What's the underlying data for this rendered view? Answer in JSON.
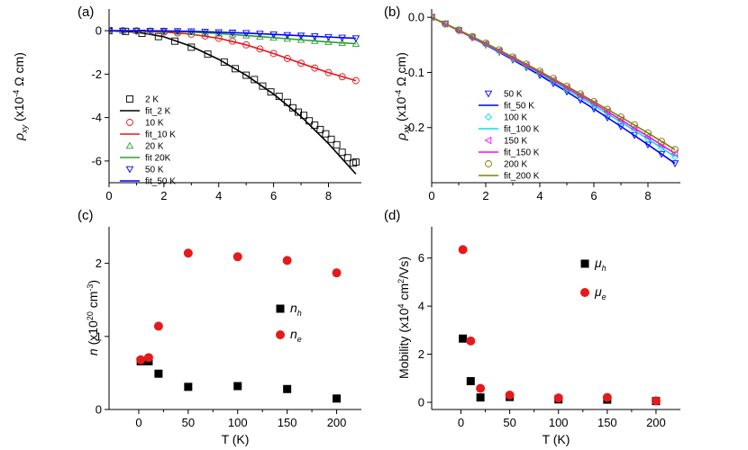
{
  "chart_data": [
    {
      "panel": "(a)",
      "type": "scatter",
      "xlabel": "",
      "ylabel_parts": [
        "ρ",
        "xy",
        " (x10",
        "-4",
        " Ω cm)"
      ],
      "xlim": [
        0,
        9.2
      ],
      "ylim": [
        -7,
        1
      ],
      "xticks": [
        0,
        2,
        4,
        6,
        8
      ],
      "yticks": [
        0,
        -2,
        -4,
        -6
      ],
      "legend_position": "bottom-left",
      "series": [
        {
          "name": "2 K",
          "kind": "markers",
          "marker": "square-open",
          "color": "#000000",
          "x": [
            0.0,
            0.6,
            1.2,
            1.8,
            2.4,
            3.0,
            3.6,
            4.2,
            4.6,
            5.0,
            5.3,
            5.6,
            5.9,
            6.2,
            6.5,
            6.7,
            6.9,
            7.1,
            7.3,
            7.5,
            7.7,
            7.9,
            8.1,
            8.3,
            8.5,
            8.7,
            8.9,
            9.0
          ],
          "y": [
            0.0,
            -0.03,
            -0.12,
            -0.27,
            -0.48,
            -0.76,
            -1.08,
            -1.44,
            -1.75,
            -2.05,
            -2.25,
            -2.55,
            -2.82,
            -3.02,
            -3.3,
            -3.55,
            -3.75,
            -3.9,
            -4.15,
            -4.35,
            -4.55,
            -4.75,
            -5.0,
            -5.25,
            -5.6,
            -5.85,
            -6.1,
            -6.05
          ]
        },
        {
          "name": "fit_2 K",
          "kind": "line",
          "color": "#000000",
          "x": [
            0,
            1,
            2,
            3,
            4,
            5,
            6,
            7,
            8,
            9
          ],
          "y": [
            0.0,
            -0.06,
            -0.28,
            -0.72,
            -1.32,
            -2.05,
            -2.92,
            -3.95,
            -5.2,
            -6.6
          ]
        },
        {
          "name": "10 K",
          "kind": "markers",
          "marker": "circle-open",
          "color": "#e41a1c",
          "x": [
            0.0,
            0.5,
            1.0,
            1.5,
            2.0,
            2.5,
            3.0,
            3.5,
            4.0,
            4.5,
            5.0,
            5.5,
            6.0,
            6.5,
            7.0,
            7.5,
            8.0,
            8.5,
            9.0
          ],
          "y": [
            0.0,
            0.0,
            -0.01,
            -0.03,
            -0.06,
            -0.1,
            -0.16,
            -0.24,
            -0.35,
            -0.48,
            -0.65,
            -0.84,
            -1.05,
            -1.28,
            -1.5,
            -1.72,
            -1.93,
            -2.12,
            -2.3
          ]
        },
        {
          "name": "fit_10 K",
          "kind": "line",
          "color": "#e41a1c",
          "x": [
            0,
            1,
            2,
            3,
            4,
            5,
            6,
            7,
            8,
            9
          ],
          "y": [
            0.0,
            -0.01,
            -0.06,
            -0.16,
            -0.35,
            -0.65,
            -1.05,
            -1.5,
            -1.93,
            -2.3
          ]
        },
        {
          "name": "20 K",
          "kind": "markers",
          "marker": "triangle-up-open",
          "color": "#2ca02c",
          "x": [
            0.0,
            0.5,
            1.0,
            1.5,
            2.0,
            2.5,
            3.0,
            3.5,
            4.0,
            4.5,
            5.0,
            5.5,
            6.0,
            6.5,
            7.0,
            7.5,
            8.0,
            8.5,
            9.0
          ],
          "y": [
            0.0,
            0.0,
            0.0,
            -0.01,
            -0.02,
            -0.04,
            -0.06,
            -0.09,
            -0.13,
            -0.17,
            -0.22,
            -0.27,
            -0.32,
            -0.37,
            -0.42,
            -0.47,
            -0.52,
            -0.56,
            -0.6
          ]
        },
        {
          "name": "fit 20K",
          "kind": "line",
          "color": "#2ca02c",
          "x": [
            0,
            1,
            2,
            3,
            4,
            5,
            6,
            7,
            8,
            9
          ],
          "y": [
            0.0,
            0.0,
            -0.02,
            -0.06,
            -0.13,
            -0.22,
            -0.32,
            -0.42,
            -0.52,
            -0.6
          ]
        },
        {
          "name": "50 K",
          "kind": "markers",
          "marker": "triangle-down-open",
          "color": "#0000ff",
          "x": [
            0.0,
            0.5,
            1.0,
            1.5,
            2.0,
            2.5,
            3.0,
            3.5,
            4.0,
            4.5,
            5.0,
            5.5,
            6.0,
            6.5,
            7.0,
            7.5,
            8.0,
            8.5,
            9.0
          ],
          "y": [
            0.0,
            0.0,
            0.0,
            -0.01,
            -0.01,
            -0.02,
            -0.03,
            -0.05,
            -0.07,
            -0.09,
            -0.11,
            -0.14,
            -0.17,
            -0.2,
            -0.23,
            -0.26,
            -0.29,
            -0.32,
            -0.35
          ]
        },
        {
          "name": "fit_50 K",
          "kind": "line",
          "color": "#0000ff",
          "x": [
            0,
            1,
            2,
            3,
            4,
            5,
            6,
            7,
            8,
            9
          ],
          "y": [
            0.0,
            0.0,
            -0.01,
            -0.03,
            -0.07,
            -0.11,
            -0.17,
            -0.23,
            -0.29,
            -0.35
          ]
        }
      ]
    },
    {
      "panel": "(b)",
      "type": "scatter",
      "xlabel": "",
      "ylabel_parts": [
        "ρ",
        "xy",
        " (x10",
        "-4",
        " Ω cm)"
      ],
      "xlim": [
        0,
        9.2
      ],
      "ylim": [
        -0.3,
        0.015
      ],
      "xticks": [
        0,
        2,
        4,
        6,
        8
      ],
      "yticks": [
        0.0,
        -0.1,
        -0.2
      ],
      "ytick_labels": [
        "0.0",
        "-0.1",
        "-0.2"
      ],
      "legend_position": "bottom-left",
      "series": [
        {
          "name": "50 K",
          "kind": "markers",
          "marker": "triangle-down-open",
          "color": "#0000ff",
          "x": [
            0.0,
            0.5,
            1.0,
            1.5,
            2.0,
            2.5,
            3.0,
            3.5,
            4.0,
            4.5,
            5.0,
            5.5,
            6.0,
            6.5,
            7.0,
            7.5,
            8.0,
            8.5,
            9.0
          ],
          "y": [
            0.0,
            -0.012,
            -0.024,
            -0.037,
            -0.05,
            -0.063,
            -0.077,
            -0.091,
            -0.105,
            -0.12,
            -0.135,
            -0.15,
            -0.166,
            -0.182,
            -0.198,
            -0.214,
            -0.231,
            -0.248,
            -0.265
          ]
        },
        {
          "name": "fit_50 K",
          "kind": "line",
          "color": "#0000ff",
          "x": [
            0,
            1,
            2,
            3,
            4,
            5,
            6,
            7,
            8,
            9
          ],
          "y": [
            0.0,
            -0.024,
            -0.05,
            -0.077,
            -0.105,
            -0.135,
            -0.166,
            -0.198,
            -0.231,
            -0.265
          ]
        },
        {
          "name": "100 K",
          "kind": "markers",
          "marker": "diamond-open",
          "color": "#00e5e5",
          "x": [
            0.0,
            0.5,
            1.0,
            1.5,
            2.0,
            2.5,
            3.0,
            3.5,
            4.0,
            4.5,
            5.0,
            5.5,
            6.0,
            6.5,
            7.0,
            7.5,
            8.0,
            8.5,
            9.0
          ],
          "y": [
            0.0,
            -0.012,
            -0.024,
            -0.036,
            -0.049,
            -0.062,
            -0.075,
            -0.089,
            -0.102,
            -0.116,
            -0.131,
            -0.145,
            -0.16,
            -0.175,
            -0.19,
            -0.205,
            -0.221,
            -0.237,
            -0.253
          ]
        },
        {
          "name": "fit_100 K",
          "kind": "line",
          "color": "#00e5e5",
          "x": [
            0,
            1,
            2,
            3,
            4,
            5,
            6,
            7,
            8,
            9
          ],
          "y": [
            0.0,
            -0.024,
            -0.049,
            -0.075,
            -0.102,
            -0.131,
            -0.16,
            -0.19,
            -0.221,
            -0.253
          ]
        },
        {
          "name": "150 K",
          "kind": "markers",
          "marker": "triangle-left-open",
          "color": "#ff00ff",
          "x": [
            0.0,
            0.5,
            1.0,
            1.5,
            2.0,
            2.5,
            3.0,
            3.5,
            4.0,
            4.5,
            5.0,
            5.5,
            6.0,
            6.5,
            7.0,
            7.5,
            8.0,
            8.5,
            9.0
          ],
          "y": [
            0.0,
            -0.012,
            -0.024,
            -0.036,
            -0.048,
            -0.061,
            -0.074,
            -0.087,
            -0.1,
            -0.114,
            -0.128,
            -0.142,
            -0.156,
            -0.171,
            -0.186,
            -0.201,
            -0.216,
            -0.231,
            -0.247
          ]
        },
        {
          "name": "fit_150 K",
          "kind": "line",
          "color": "#ff00ff",
          "x": [
            0,
            1,
            2,
            3,
            4,
            5,
            6,
            7,
            8,
            9
          ],
          "y": [
            0.0,
            -0.024,
            -0.048,
            -0.074,
            -0.1,
            -0.128,
            -0.156,
            -0.186,
            -0.216,
            -0.247
          ]
        },
        {
          "name": "200 K",
          "kind": "markers",
          "marker": "circle-open",
          "color": "#808000",
          "x": [
            0.0,
            0.5,
            1.0,
            1.5,
            2.0,
            2.5,
            3.0,
            3.5,
            4.0,
            4.5,
            5.0,
            5.5,
            6.0,
            6.5,
            7.0,
            7.5,
            8.0,
            8.5,
            9.0
          ],
          "y": [
            0.0,
            -0.012,
            -0.023,
            -0.035,
            -0.047,
            -0.059,
            -0.072,
            -0.085,
            -0.098,
            -0.111,
            -0.125,
            -0.139,
            -0.153,
            -0.167,
            -0.181,
            -0.195,
            -0.21,
            -0.225,
            -0.24
          ]
        },
        {
          "name": "fit_200 K",
          "kind": "line",
          "color": "#808000",
          "x": [
            0,
            1,
            2,
            3,
            4,
            5,
            6,
            7,
            8,
            9
          ],
          "y": [
            0.0,
            -0.023,
            -0.047,
            -0.072,
            -0.098,
            -0.125,
            -0.153,
            -0.181,
            -0.21,
            -0.24
          ]
        }
      ]
    },
    {
      "panel": "(c)",
      "type": "scatter",
      "xlabel": "T (K)",
      "ylabel_parts": [
        "n",
        " (x10",
        "20",
        " cm",
        "-3",
        ")"
      ],
      "xlim": [
        -30,
        225
      ],
      "ylim": [
        0,
        2.5
      ],
      "xticks": [
        0,
        50,
        100,
        150,
        200
      ],
      "yticks": [
        0,
        1,
        2
      ],
      "legend_position": "middle-right",
      "series": [
        {
          "name": "n",
          "subscript": "h",
          "kind": "markers",
          "marker": "square-filled",
          "color": "#000000",
          "x": [
            2,
            10,
            20,
            50,
            100,
            150,
            200
          ],
          "y": [
            0.66,
            0.66,
            0.49,
            0.31,
            0.32,
            0.28,
            0.15
          ]
        },
        {
          "name": "n",
          "subscript": "e",
          "kind": "markers",
          "marker": "circle-filled",
          "color": "#e41a1c",
          "x": [
            2,
            10,
            20,
            50,
            100,
            150,
            200
          ],
          "y": [
            0.68,
            0.71,
            1.14,
            2.14,
            2.09,
            2.04,
            1.87
          ]
        }
      ]
    },
    {
      "panel": "(d)",
      "type": "scatter",
      "xlabel": "T (K)",
      "ylabel_parts": [
        "Mobility (x10",
        "4",
        " cm",
        "2",
        "/Vs)"
      ],
      "xlim": [
        -30,
        225
      ],
      "ylim": [
        -0.3,
        7.3
      ],
      "xticks": [
        0,
        50,
        100,
        150,
        200
      ],
      "yticks": [
        0,
        2,
        4,
        6
      ],
      "legend_position": "top-right",
      "series": [
        {
          "name": "μ",
          "subscript": "h",
          "kind": "markers",
          "marker": "square-filled",
          "color": "#000000",
          "x": [
            2,
            10,
            20,
            50,
            100,
            150,
            200
          ],
          "y": [
            2.65,
            0.88,
            0.2,
            0.22,
            0.12,
            0.11,
            0.05
          ]
        },
        {
          "name": "μ",
          "subscript": "e",
          "kind": "markers",
          "marker": "circle-filled",
          "color": "#e41a1c",
          "x": [
            2,
            10,
            20,
            50,
            100,
            150,
            200
          ],
          "y": [
            6.35,
            2.55,
            0.58,
            0.3,
            0.18,
            0.2,
            0.06
          ]
        }
      ]
    }
  ]
}
